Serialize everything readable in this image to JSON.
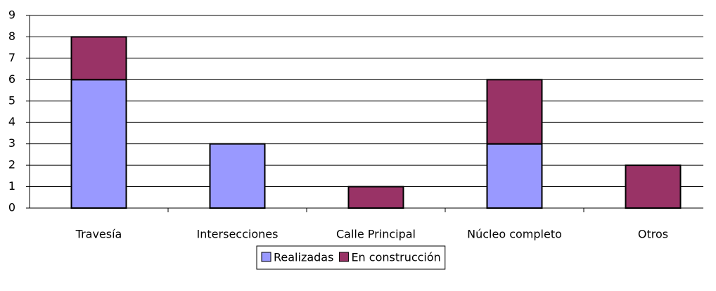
{
  "chart_data": {
    "type": "stacked_bar",
    "categories": [
      "Travesía",
      "Intersecciones",
      "Calle Principal",
      "Núcleo completo",
      "Otros"
    ],
    "series": [
      {
        "name": "Realizadas",
        "color": "#9999ff",
        "values": [
          6,
          3,
          0,
          3,
          0
        ]
      },
      {
        "name": "En construcción",
        "color": "#993366",
        "values": [
          2,
          0,
          1,
          3,
          2
        ]
      }
    ],
    "ylim": [
      0,
      9
    ],
    "yticks": [
      0,
      1,
      2,
      3,
      4,
      5,
      6,
      7,
      8,
      9
    ],
    "grid": true,
    "legend": "bottom"
  }
}
